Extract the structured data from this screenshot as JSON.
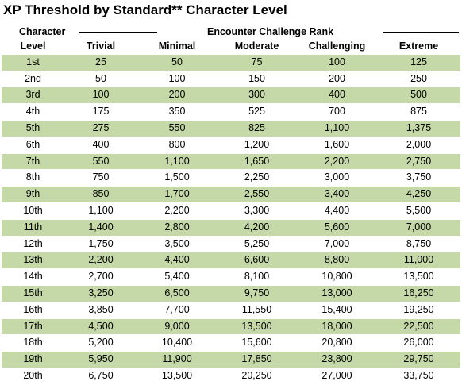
{
  "title": "XP Threshold by Standard** Character Level",
  "header": {
    "character_label": "Character",
    "level_label": "Level",
    "group_label": "Encounter Challenge Rank"
  },
  "columns": [
    "Trivial",
    "Minimal",
    "Moderate",
    "Challenging",
    "Extreme"
  ],
  "rows": [
    {
      "level": "1st",
      "values": [
        "25",
        "50",
        "75",
        "100",
        "125"
      ]
    },
    {
      "level": "2nd",
      "values": [
        "50",
        "100",
        "150",
        "200",
        "250"
      ]
    },
    {
      "level": "3rd",
      "values": [
        "100",
        "200",
        "300",
        "400",
        "500"
      ]
    },
    {
      "level": "4th",
      "values": [
        "175",
        "350",
        "525",
        "700",
        "875"
      ]
    },
    {
      "level": "5th",
      "values": [
        "275",
        "550",
        "825",
        "1,100",
        "1,375"
      ]
    },
    {
      "level": "6th",
      "values": [
        "400",
        "800",
        "1,200",
        "1,600",
        "2,000"
      ]
    },
    {
      "level": "7th",
      "values": [
        "550",
        "1,100",
        "1,650",
        "2,200",
        "2,750"
      ]
    },
    {
      "level": "8th",
      "values": [
        "750",
        "1,500",
        "2,250",
        "3,000",
        "3,750"
      ]
    },
    {
      "level": "9th",
      "values": [
        "850",
        "1,700",
        "2,550",
        "3,400",
        "4,250"
      ]
    },
    {
      "level": "10th",
      "values": [
        "1,100",
        "2,200",
        "3,300",
        "4,400",
        "5,500"
      ]
    },
    {
      "level": "11th",
      "values": [
        "1,400",
        "2,800",
        "4,200",
        "5,600",
        "7,000"
      ]
    },
    {
      "level": "12th",
      "values": [
        "1,750",
        "3,500",
        "5,250",
        "7,000",
        "8,750"
      ]
    },
    {
      "level": "13th",
      "values": [
        "2,200",
        "4,400",
        "6,600",
        "8,800",
        "11,000"
      ]
    },
    {
      "level": "14th",
      "values": [
        "2,700",
        "5,400",
        "8,100",
        "10,800",
        "13,500"
      ]
    },
    {
      "level": "15th",
      "values": [
        "3,250",
        "6,500",
        "9,750",
        "13,000",
        "16,250"
      ]
    },
    {
      "level": "16th",
      "values": [
        "3,850",
        "7,700",
        "11,550",
        "15,400",
        "19,250"
      ]
    },
    {
      "level": "17th",
      "values": [
        "4,500",
        "9,000",
        "13,500",
        "18,000",
        "22,500"
      ]
    },
    {
      "level": "18th",
      "values": [
        "5,200",
        "10,400",
        "15,600",
        "20,800",
        "26,000"
      ]
    },
    {
      "level": "19th",
      "values": [
        "5,950",
        "11,900",
        "17,850",
        "23,800",
        "29,750"
      ]
    },
    {
      "level": "20th",
      "values": [
        "6,750",
        "13,500",
        "20,250",
        "27,000",
        "33,750"
      ]
    }
  ],
  "colors": {
    "row_shade": "#c5d9a8",
    "text": "#000000"
  }
}
